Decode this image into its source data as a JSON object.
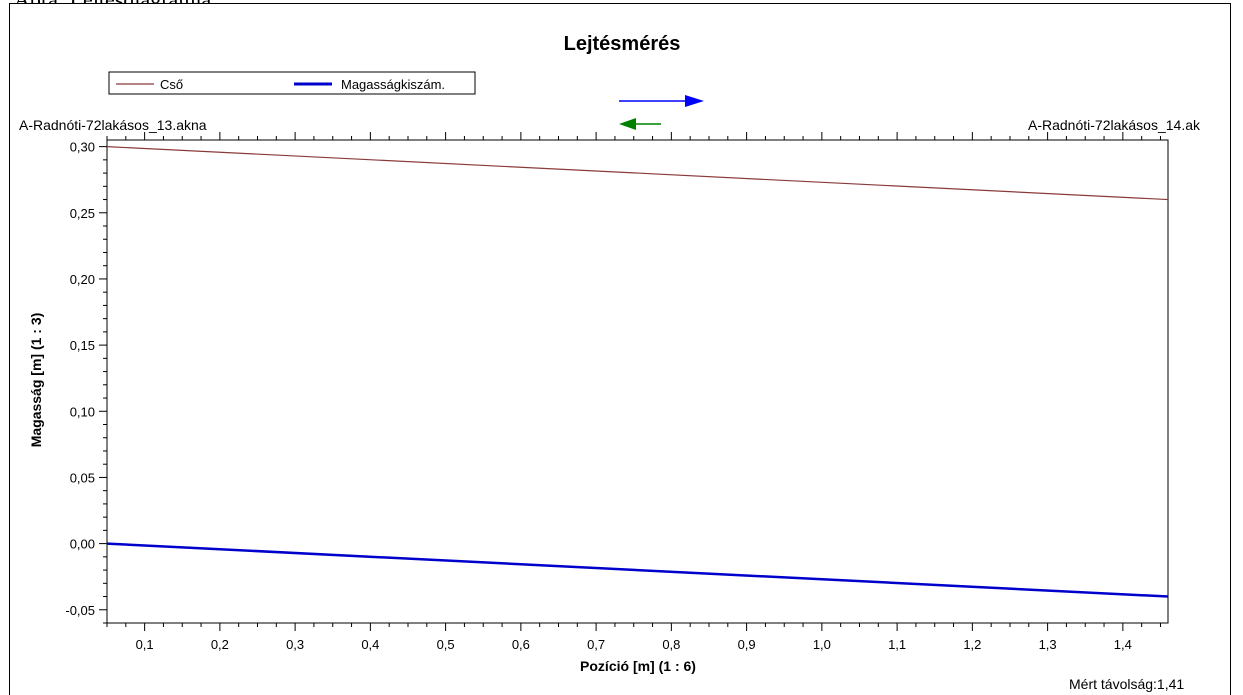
{
  "caption": "Ábra: Lejtésdiagramja",
  "chart_data": {
    "type": "line",
    "title": "Lejtésmérés",
    "xlabel": "Pozíció [m] (1 : 6)",
    "ylabel": "Magasság [m] (1 : 3)",
    "xlim": [
      0.05,
      1.46
    ],
    "ylim": [
      -0.06,
      0.305
    ],
    "x_ticks": [
      0.1,
      0.2,
      0.3,
      0.4,
      0.5,
      0.6,
      0.7,
      0.8,
      0.9,
      1.0,
      1.1,
      1.2,
      1.3,
      1.4
    ],
    "x_tick_labels": [
      "0,1",
      "0,2",
      "0,3",
      "0,4",
      "0,5",
      "0,6",
      "0,7",
      "0,8",
      "0,9",
      "1,0",
      "1,1",
      "1,2",
      "1,3",
      "1,4"
    ],
    "y_ticks": [
      0.3,
      0.25,
      0.2,
      0.15,
      0.1,
      0.05,
      0.0,
      -0.05
    ],
    "y_tick_labels": [
      "0,30",
      "0,25",
      "0,20",
      "0,15",
      "0,10",
      "0,05",
      "0,00",
      "-0,05"
    ],
    "grid": false,
    "legend_position": "top-left",
    "series": [
      {
        "name": "Cső",
        "color": "#8b3a3a",
        "x": [
          0.05,
          1.46
        ],
        "y": [
          0.3,
          0.26
        ]
      },
      {
        "name": "Cső",
        "color": "#8b3a3a",
        "x": [
          0.05,
          1.46
        ],
        "y": [
          0.0,
          -0.04
        ]
      },
      {
        "name": "Magasságkiszám.",
        "color": "#0000cc",
        "x": [
          0.05,
          1.46
        ],
        "y": [
          0.0,
          -0.04
        ]
      }
    ],
    "annotations": {
      "start_node": "A-Radnóti-72lakásos_13.akna",
      "end_node": "A-Radnóti-72lakásos_14.ak",
      "measured_distance": "Mért távolság:1,41"
    },
    "direction_arrows": [
      {
        "direction": "right",
        "color": "#0000ff"
      },
      {
        "direction": "left",
        "color": "#008000"
      }
    ]
  }
}
